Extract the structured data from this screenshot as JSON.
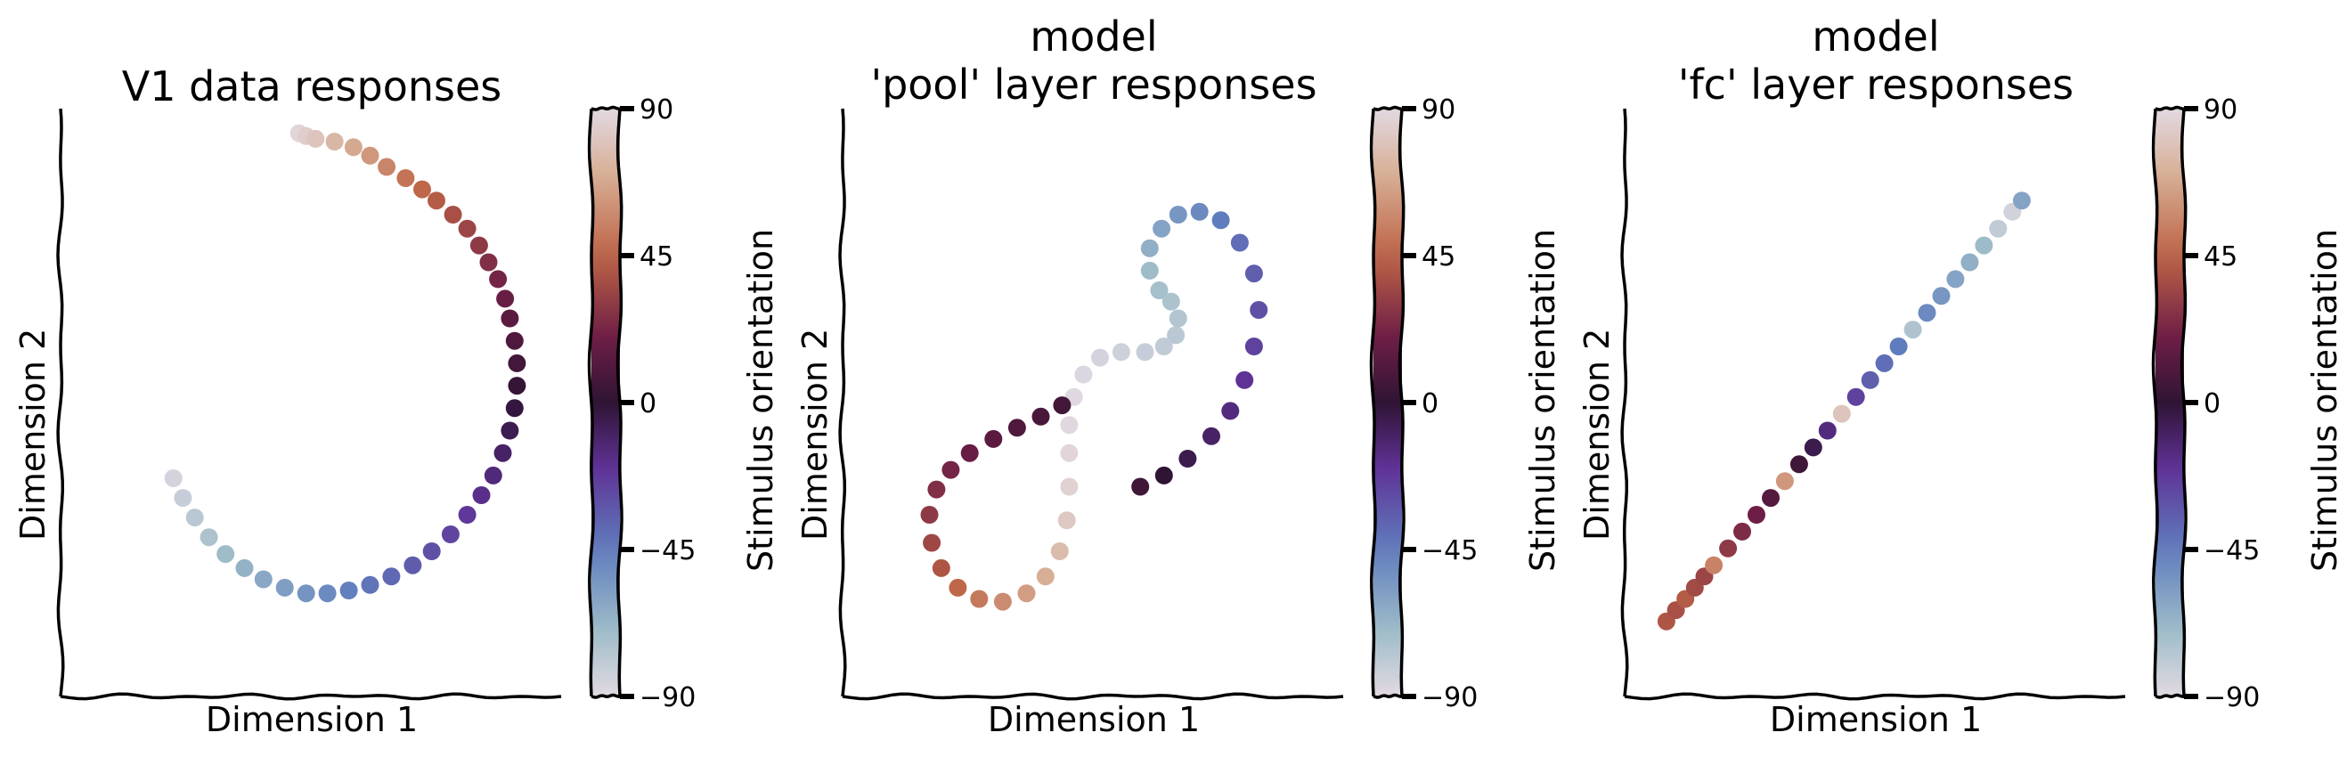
{
  "colors": {
    "axis": "#000000",
    "background": "#ffffff",
    "colormap": "twilight"
  },
  "charts": [
    {
      "title_lines": [
        "V1 data responses"
      ],
      "xlabel": "Dimension 1",
      "ylabel": "Dimension 2",
      "colorbar_label": "Stimulus orientation"
    },
    {
      "title_lines": [
        "model",
        "'pool' layer responses"
      ],
      "xlabel": "Dimension 1",
      "ylabel": "Dimension 2",
      "colorbar_label": "Stimulus orientation"
    },
    {
      "title_lines": [
        "model",
        "'fc' layer responses"
      ],
      "xlabel": "Dimension 1",
      "ylabel": "Dimension 2",
      "colorbar_label": "Stimulus orientation"
    }
  ],
  "chart_data": [
    {
      "type": "scatter",
      "title": "V1 data responses",
      "xlabel": "Dimension 1",
      "ylabel": "Dimension 2",
      "colorbar": {
        "label": "Stimulus orientation",
        "range": [
          -90,
          90
        ],
        "ticks": [
          "90",
          "45",
          "0",
          "−45",
          "−90"
        ],
        "tick_values": [
          90,
          45,
          0,
          -45,
          -90
        ]
      },
      "grid": false,
      "shape": "C-shaped arc (opening to the right)",
      "points": [
        [
          -0.05,
          0.96,
          88
        ],
        [
          -0.02,
          0.95,
          84
        ],
        [
          0.02,
          0.94,
          80
        ],
        [
          0.1,
          0.93,
          74
        ],
        [
          0.18,
          0.91,
          68
        ],
        [
          0.25,
          0.88,
          62
        ],
        [
          0.32,
          0.84,
          56
        ],
        [
          0.4,
          0.8,
          50
        ],
        [
          0.47,
          0.76,
          46
        ],
        [
          0.53,
          0.72,
          42
        ],
        [
          0.6,
          0.67,
          38
        ],
        [
          0.66,
          0.62,
          34
        ],
        [
          0.71,
          0.56,
          30
        ],
        [
          0.75,
          0.5,
          26
        ],
        [
          0.79,
          0.44,
          22
        ],
        [
          0.82,
          0.37,
          18
        ],
        [
          0.84,
          0.3,
          14
        ],
        [
          0.86,
          0.22,
          10
        ],
        [
          0.87,
          0.14,
          6
        ],
        [
          0.87,
          0.06,
          2
        ],
        [
          0.86,
          -0.02,
          -2
        ],
        [
          0.84,
          -0.1,
          -6
        ],
        [
          0.81,
          -0.18,
          -10
        ],
        [
          0.77,
          -0.26,
          -14
        ],
        [
          0.72,
          -0.33,
          -18
        ],
        [
          0.66,
          -0.4,
          -22
        ],
        [
          0.59,
          -0.47,
          -26
        ],
        [
          0.51,
          -0.53,
          -30
        ],
        [
          0.43,
          -0.58,
          -34
        ],
        [
          0.34,
          -0.62,
          -38
        ],
        [
          0.25,
          -0.65,
          -42
        ],
        [
          0.16,
          -0.67,
          -46
        ],
        [
          0.07,
          -0.68,
          -50
        ],
        [
          -0.02,
          -0.68,
          -54
        ],
        [
          -0.11,
          -0.66,
          -58
        ],
        [
          -0.2,
          -0.63,
          -62
        ],
        [
          -0.28,
          -0.59,
          -66
        ],
        [
          -0.36,
          -0.54,
          -70
        ],
        [
          -0.43,
          -0.48,
          -74
        ],
        [
          -0.49,
          -0.41,
          -78
        ],
        [
          -0.54,
          -0.34,
          -82
        ],
        [
          -0.58,
          -0.27,
          -86
        ]
      ]
    },
    {
      "type": "scatter",
      "title": "model 'pool' layer responses",
      "xlabel": "Dimension 1",
      "ylabel": "Dimension 2",
      "colorbar": {
        "label": "Stimulus orientation",
        "range": [
          -90,
          90
        ],
        "ticks": [
          "90",
          "45",
          "0",
          "−45",
          "−90"
        ],
        "tick_values": [
          90,
          45,
          0,
          -45,
          -90
        ]
      },
      "grid": false,
      "shape": "figure-eight / S-shaped loop",
      "points": [
        [
          0.2,
          -0.3,
          5
        ],
        [
          0.3,
          -0.26,
          0
        ],
        [
          0.4,
          -0.2,
          -5
        ],
        [
          0.5,
          -0.12,
          -10
        ],
        [
          0.58,
          -0.03,
          -15
        ],
        [
          0.64,
          0.08,
          -20
        ],
        [
          0.68,
          0.2,
          -25
        ],
        [
          0.7,
          0.33,
          -30
        ],
        [
          0.68,
          0.46,
          -35
        ],
        [
          0.62,
          0.57,
          -40
        ],
        [
          0.54,
          0.65,
          -45
        ],
        [
          0.45,
          0.68,
          -50
        ],
        [
          0.36,
          0.67,
          -55
        ],
        [
          0.29,
          0.62,
          -60
        ],
        [
          0.24,
          0.55,
          -65
        ],
        [
          0.24,
          0.47,
          -70
        ],
        [
          0.28,
          0.4,
          -72
        ],
        [
          0.33,
          0.36,
          -74
        ],
        [
          0.36,
          0.3,
          -76
        ],
        [
          0.35,
          0.24,
          -78
        ],
        [
          0.3,
          0.2,
          -80
        ],
        [
          0.22,
          0.18,
          -82
        ],
        [
          0.12,
          0.18,
          -84
        ],
        [
          0.03,
          0.16,
          -86
        ],
        [
          -0.04,
          0.1,
          -88
        ],
        [
          -0.08,
          0.02,
          -89
        ],
        [
          -0.1,
          -0.08,
          89
        ],
        [
          -0.1,
          -0.18,
          88
        ],
        [
          -0.1,
          -0.3,
          86
        ],
        [
          -0.11,
          -0.42,
          82
        ],
        [
          -0.14,
          -0.53,
          76
        ],
        [
          -0.2,
          -0.62,
          70
        ],
        [
          -0.28,
          -0.68,
          64
        ],
        [
          -0.38,
          -0.71,
          58
        ],
        [
          -0.48,
          -0.7,
          52
        ],
        [
          -0.57,
          -0.66,
          46
        ],
        [
          -0.64,
          -0.59,
          40
        ],
        [
          -0.68,
          -0.5,
          35
        ],
        [
          -0.69,
          -0.4,
          30
        ],
        [
          -0.66,
          -0.31,
          26
        ],
        [
          -0.6,
          -0.24,
          22
        ],
        [
          -0.52,
          -0.18,
          18
        ],
        [
          -0.42,
          -0.13,
          14
        ],
        [
          -0.32,
          -0.09,
          10
        ],
        [
          -0.22,
          -0.05,
          8
        ],
        [
          -0.13,
          -0.01,
          6
        ]
      ]
    },
    {
      "type": "scatter",
      "title": "model 'fc' layer responses",
      "xlabel": "Dimension 1",
      "ylabel": "Dimension 2",
      "colorbar": {
        "label": "Stimulus orientation",
        "range": [
          -90,
          90
        ],
        "ticks": [
          "90",
          "45",
          "0",
          "−45",
          "−90"
        ],
        "tick_values": [
          90,
          45,
          0,
          -45,
          -90
        ]
      },
      "grid": false,
      "shape": "elongated diagonal band from lower-left to upper-right",
      "points": [
        [
          -0.88,
          -0.78,
          40
        ],
        [
          -0.84,
          -0.74,
          38
        ],
        [
          -0.8,
          -0.7,
          42
        ],
        [
          -0.76,
          -0.66,
          36
        ],
        [
          -0.72,
          -0.62,
          34
        ],
        [
          -0.68,
          -0.58,
          55
        ],
        [
          -0.62,
          -0.52,
          30
        ],
        [
          -0.56,
          -0.46,
          25
        ],
        [
          -0.5,
          -0.4,
          20
        ],
        [
          -0.44,
          -0.34,
          12
        ],
        [
          -0.38,
          -0.28,
          62
        ],
        [
          -0.32,
          -0.22,
          5
        ],
        [
          -0.26,
          -0.16,
          -5
        ],
        [
          -0.2,
          -0.1,
          -15
        ],
        [
          -0.14,
          -0.04,
          80
        ],
        [
          -0.08,
          0.02,
          -25
        ],
        [
          -0.02,
          0.08,
          -35
        ],
        [
          0.04,
          0.14,
          -40
        ],
        [
          0.1,
          0.2,
          -45
        ],
        [
          0.16,
          0.26,
          -75
        ],
        [
          0.22,
          0.32,
          -50
        ],
        [
          0.28,
          0.38,
          -55
        ],
        [
          0.34,
          0.44,
          -60
        ],
        [
          0.4,
          0.5,
          -65
        ],
        [
          0.46,
          0.56,
          -70
        ],
        [
          0.52,
          0.62,
          -80
        ],
        [
          0.58,
          0.68,
          -85
        ],
        [
          0.62,
          0.72,
          -60
        ]
      ]
    }
  ]
}
